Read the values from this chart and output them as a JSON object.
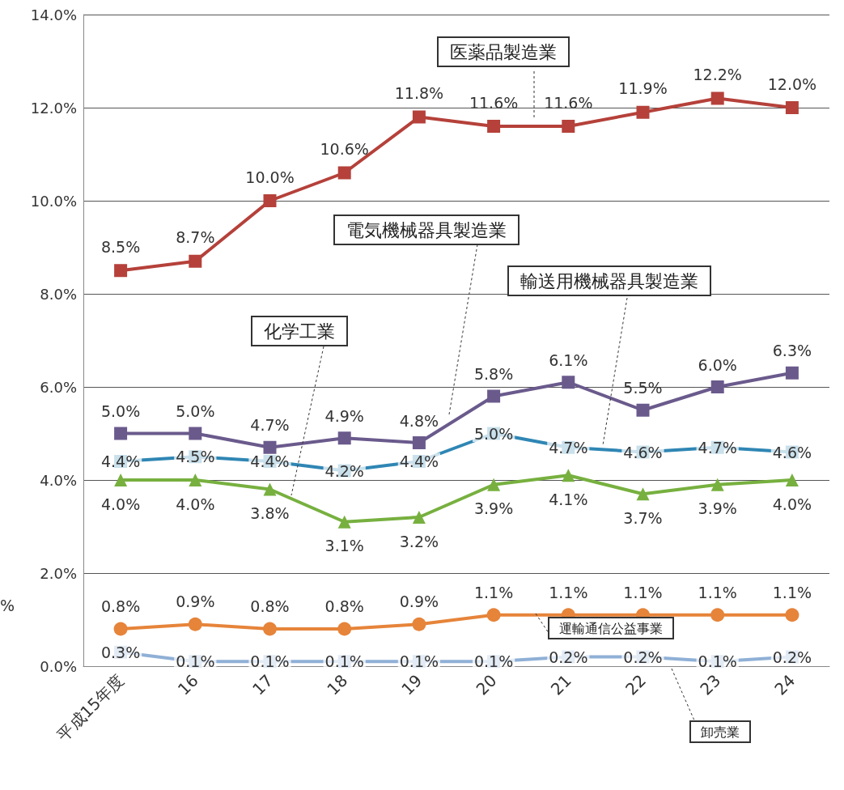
{
  "chart_data": {
    "type": "line",
    "ylabel": "%",
    "categories": [
      "平成15年度",
      "16",
      "17",
      "18",
      "19",
      "20",
      "21",
      "22",
      "23",
      "24"
    ],
    "ylim": [
      0,
      14
    ],
    "yticks": [
      {
        "value": 0,
        "label": "0.0%"
      },
      {
        "value": 2,
        "label": "2.0%"
      },
      {
        "value": 4,
        "label": "4.0%"
      },
      {
        "value": 6,
        "label": "6.0%"
      },
      {
        "value": 8,
        "label": "8.0%"
      },
      {
        "value": 10,
        "label": "10.0%"
      },
      {
        "value": 12,
        "label": "12.0%"
      },
      {
        "value": 14,
        "label": "14.0%"
      }
    ],
    "grid": "y",
    "line_style": "solid",
    "series": [
      {
        "name": "医薬品製造業",
        "color": "#b5413a",
        "marker": "square",
        "values": [
          8.5,
          8.7,
          10.0,
          10.6,
          11.8,
          11.6,
          11.6,
          11.9,
          12.2,
          12.0
        ],
        "value_labels": [
          "8.5%",
          "8.7%",
          "10.0%",
          "10.6%",
          "11.8%",
          "11.6%",
          "11.6%",
          "11.9%",
          "12.2%",
          "12.0%"
        ]
      },
      {
        "name": "電気機械器具製造業",
        "color": "#6a5a8c",
        "marker": "square",
        "values": [
          5.0,
          5.0,
          4.7,
          4.9,
          4.8,
          5.8,
          6.1,
          5.5,
          6.0,
          6.3
        ],
        "value_labels": [
          "5.0%",
          "5.0%",
          "4.7%",
          "4.9%",
          "4.8%",
          "5.8%",
          "6.1%",
          "5.5%",
          "6.0%",
          "6.3%"
        ]
      },
      {
        "name": "輸送用機械器具製造業",
        "color": "#2f86b4",
        "marker": "square",
        "values": [
          4.4,
          4.5,
          4.4,
          4.2,
          4.4,
          5.0,
          4.7,
          4.6,
          4.7,
          4.6
        ],
        "value_labels": [
          "4.4%",
          "4.5%",
          "4.4%",
          "4.2%",
          "4.4%",
          "5.0%",
          "4.7%",
          "4.6%",
          "4.7%",
          "4.6%"
        ]
      },
      {
        "name": "化学工業",
        "color": "#77b03f",
        "marker": "triangle",
        "values": [
          4.0,
          4.0,
          3.8,
          3.1,
          3.2,
          3.9,
          4.1,
          3.7,
          3.9,
          4.0
        ],
        "value_labels": [
          "4.0%",
          "4.0%",
          "3.8%",
          "3.1%",
          "3.2%",
          "3.9%",
          "4.1%",
          "3.7%",
          "3.9%",
          "4.0%"
        ]
      },
      {
        "name": "運輸通信公益事業",
        "color": "#e6843a",
        "marker": "circle",
        "values": [
          0.8,
          0.9,
          0.8,
          0.8,
          0.9,
          1.1,
          1.1,
          1.1,
          1.1,
          1.1
        ],
        "value_labels": [
          "0.8%",
          "0.9%",
          "0.8%",
          "0.8%",
          "0.9%",
          "1.1%",
          "1.1%",
          "1.1%",
          "1.1%",
          "1.1%"
        ]
      },
      {
        "name": "卸売業",
        "color": "#8fb0d6",
        "marker": "square",
        "values": [
          0.3,
          0.1,
          0.1,
          0.1,
          0.1,
          0.1,
          0.2,
          0.2,
          0.1,
          0.2
        ],
        "value_labels": [
          "0.3%",
          "0.1%",
          "0.1%",
          "0.1%",
          "0.1%",
          "0.1%",
          "0.2%",
          "0.2%",
          "0.1%",
          "0.2%"
        ]
      }
    ]
  }
}
